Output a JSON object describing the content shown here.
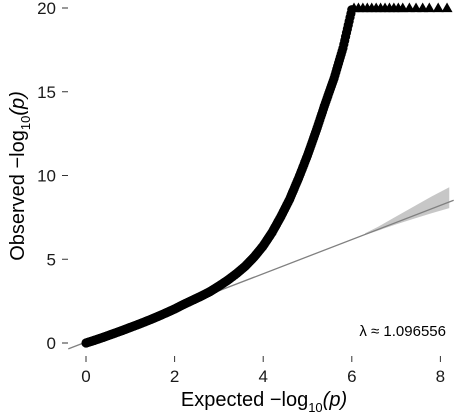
{
  "chart_data": {
    "type": "scatter",
    "title": "",
    "xlabel": "Expected −log10(p)",
    "ylabel": "Observed −log10(p)",
    "xlabel_parts": {
      "prefix": "Expected ",
      "neg": "−log",
      "sub": "10",
      "arg": "(p)"
    },
    "ylabel_parts": {
      "prefix": "Observed ",
      "neg": "−log",
      "sub": "10",
      "arg": "(p)"
    },
    "xlim": [
      0,
      8.3
    ],
    "ylim": [
      0,
      20
    ],
    "x_ticks": [
      0,
      2,
      4,
      6,
      8
    ],
    "y_ticks": [
      0,
      5,
      10,
      15,
      20
    ],
    "grid": false,
    "legend": "none",
    "annotation": "λ ≈ 1.096556",
    "series": [
      {
        "marker": "circle",
        "color": "#000000",
        "points": [
          [
            0,
            0
          ],
          [
            0.2,
            0.17
          ],
          [
            0.4,
            0.35
          ],
          [
            0.6,
            0.54
          ],
          [
            0.8,
            0.73
          ],
          [
            1.0,
            0.93
          ],
          [
            1.2,
            1.13
          ],
          [
            1.4,
            1.34
          ],
          [
            1.6,
            1.56
          ],
          [
            1.8,
            1.79
          ],
          [
            2.0,
            2.03
          ],
          [
            2.2,
            2.3
          ],
          [
            2.4,
            2.55
          ],
          [
            2.6,
            2.8
          ],
          [
            2.8,
            3.07
          ],
          [
            3.0,
            3.4
          ],
          [
            3.2,
            3.75
          ],
          [
            3.4,
            4.15
          ],
          [
            3.6,
            4.6
          ],
          [
            3.8,
            5.15
          ],
          [
            4.0,
            5.8
          ],
          [
            4.2,
            6.6
          ],
          [
            4.4,
            7.55
          ],
          [
            4.6,
            8.6
          ],
          [
            4.8,
            9.85
          ],
          [
            5.0,
            11.2
          ],
          [
            5.2,
            12.7
          ],
          [
            5.4,
            14.3
          ],
          [
            5.6,
            15.8
          ],
          [
            5.8,
            17.6
          ],
          [
            6.0,
            19.9
          ]
        ]
      },
      {
        "marker": "triangle",
        "color": "#000000",
        "note": "capped at 20",
        "points": [
          [
            6.05,
            20
          ],
          [
            6.15,
            20
          ],
          [
            6.25,
            20
          ],
          [
            6.35,
            20
          ],
          [
            6.45,
            20
          ],
          [
            6.55,
            20
          ],
          [
            6.65,
            20
          ],
          [
            6.75,
            20
          ],
          [
            6.85,
            20
          ],
          [
            6.95,
            20
          ],
          [
            7.05,
            20
          ],
          [
            7.15,
            20
          ],
          [
            7.3,
            20
          ],
          [
            7.45,
            20
          ],
          [
            7.6,
            20
          ],
          [
            7.75,
            20
          ],
          [
            7.95,
            20
          ],
          [
            8.15,
            20
          ]
        ]
      }
    ],
    "reference_line": {
      "color": "#808080",
      "x": [
        -0.4,
        8.3
      ],
      "y": [
        -0.35,
        8.52
      ]
    },
    "confidence_band": {
      "color": "#bdbdbd",
      "x": [
        6.3,
        6.6,
        7.0,
        7.4,
        7.8,
        8.2
      ],
      "lower": [
        6.45,
        6.72,
        7.08,
        7.42,
        7.75,
        8.05
      ],
      "upper": [
        6.55,
        6.95,
        7.55,
        8.15,
        8.75,
        9.3
      ]
    }
  }
}
